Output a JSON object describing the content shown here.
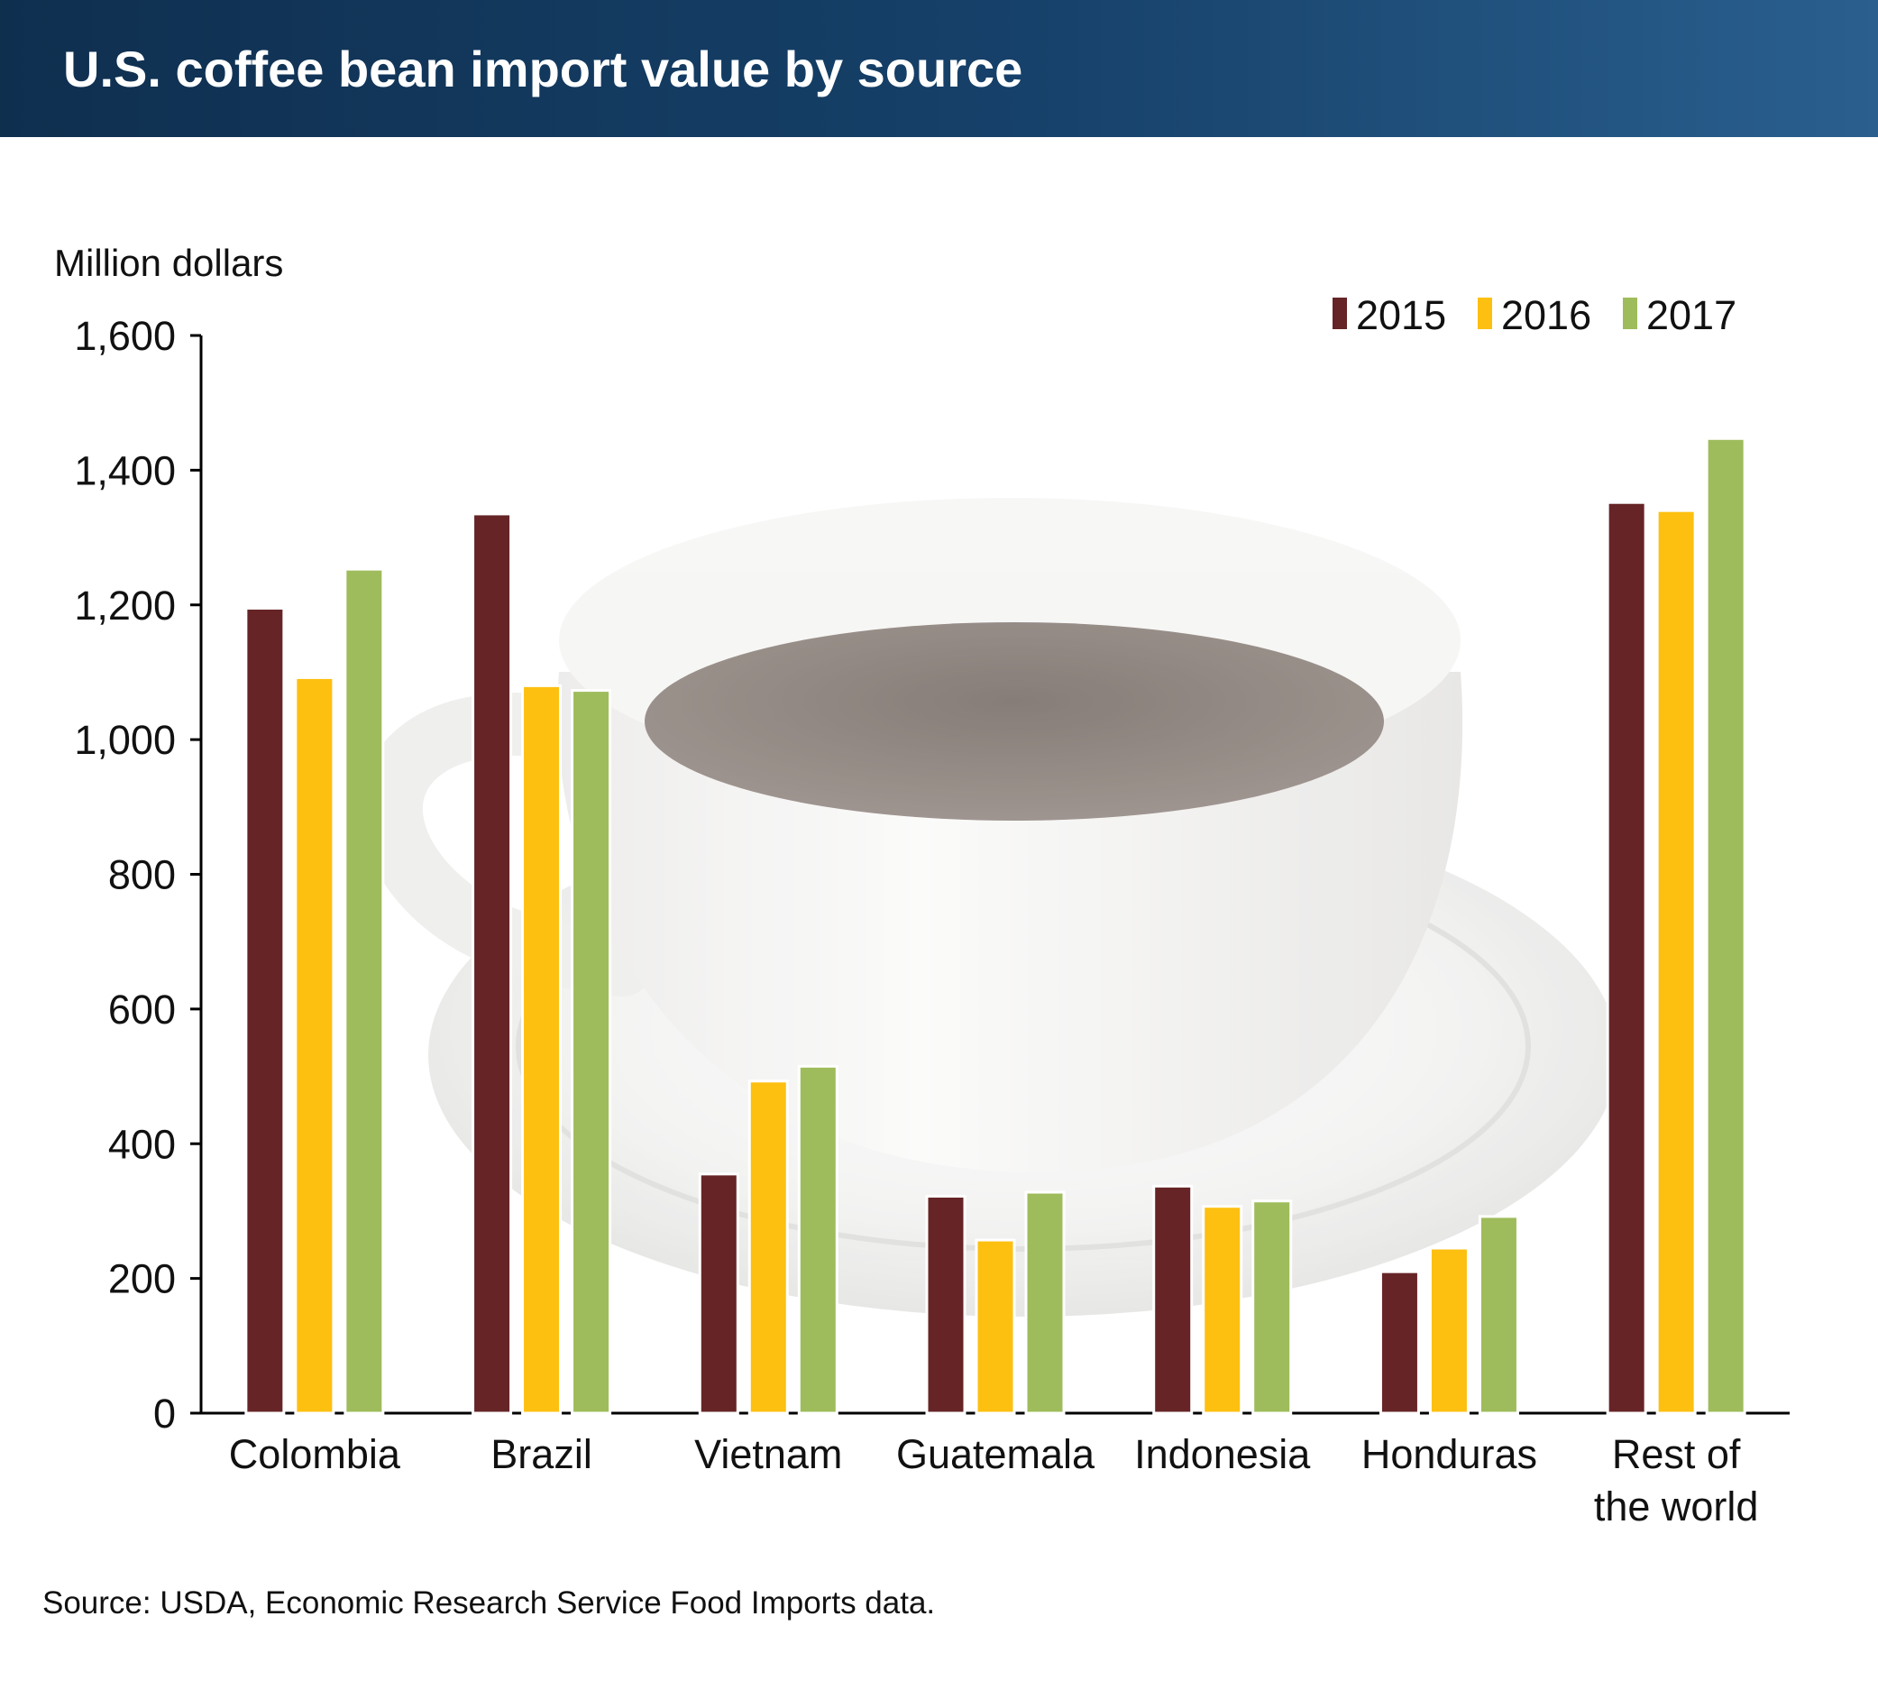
{
  "header": {
    "title": "U.S. coffee bean import value by source"
  },
  "source_note": "Source: USDA, Economic Research Service Food Imports data.",
  "colors": {
    "header_bg": "#15395f",
    "s2015": "#662426",
    "s2016": "#fdc010",
    "s2017": "#9ebc5b",
    "axis": "#000000"
  },
  "chart_data": {
    "type": "bar",
    "title": "U.S. coffee bean import value by source",
    "ylabel": "Million dollars",
    "xlabel": "",
    "ylim": [
      0,
      1600
    ],
    "y_ticks": [
      0,
      200,
      400,
      600,
      800,
      1000,
      1200,
      1400,
      1600
    ],
    "y_tick_labels": [
      "0",
      "200",
      "400",
      "600",
      "800",
      "1,000",
      "1,200",
      "1,400",
      "1,600"
    ],
    "categories": [
      "Colombia",
      "Brazil",
      "Vietnam",
      "Guatemala",
      "Indonesia",
      "Honduras",
      "Rest of the world"
    ],
    "category_label_lines": [
      [
        "Colombia"
      ],
      [
        "Brazil"
      ],
      [
        "Vietnam"
      ],
      [
        "Guatemala"
      ],
      [
        "Indonesia"
      ],
      [
        "Honduras"
      ],
      [
        "Rest of",
        "the world"
      ]
    ],
    "series": [
      {
        "name": "2015",
        "color": "#662426",
        "values": [
          1195,
          1335,
          355,
          322,
          337,
          210,
          1352
        ]
      },
      {
        "name": "2016",
        "color": "#fdc010",
        "values": [
          1092,
          1080,
          493,
          257,
          307,
          245,
          1340
        ]
      },
      {
        "name": "2017",
        "color": "#9ebc5b",
        "values": [
          1253,
          1073,
          515,
          328,
          315,
          292,
          1447
        ]
      }
    ],
    "legend_position": "top-right",
    "grid": false
  }
}
